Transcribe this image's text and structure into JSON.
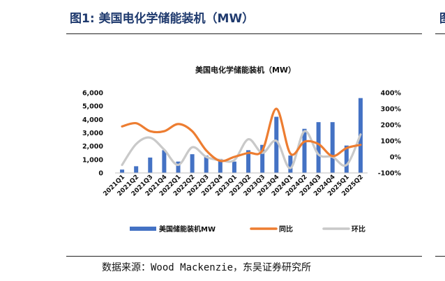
{
  "figure": {
    "title": "图1:  美国电化学储能装机（MW）",
    "clipped_title_fragment": "图",
    "source": "数据来源：Wood Mackenzie，东吴证券研究所"
  },
  "chart_data": {
    "type": "bar",
    "title": "美国电化学储能装机（MW）",
    "categories": [
      "2021Q1",
      "2021Q2",
      "2021Q3",
      "2021Q4",
      "2022Q1",
      "2022Q2",
      "2022Q3",
      "2022Q4",
      "2023Q1",
      "2023Q2",
      "2023Q3",
      "2023Q4",
      "2024Q1",
      "2024Q2",
      "2024Q3",
      "2024Q4",
      "2025Q1",
      "2025Q2"
    ],
    "y_left": {
      "ticks": [
        "0",
        "1,000",
        "2,000",
        "3,000",
        "4,000",
        "5,000",
        "6,000"
      ],
      "lim": [
        0,
        6000
      ]
    },
    "y_right": {
      "ticks": [
        "-100%",
        "0%",
        "100%",
        "200%",
        "300%",
        "400%"
      ],
      "lim": [
        -100,
        400
      ]
    },
    "grid": false,
    "legend_position": "bottom",
    "series": [
      {
        "name": "美国储能装机MW",
        "kind": "bar",
        "axis": "left",
        "color": "#4472c4",
        "values": [
          250,
          500,
          1150,
          1700,
          850,
          1400,
          1300,
          1050,
          850,
          1700,
          2100,
          4200,
          1300,
          3300,
          3800,
          3800,
          2050,
          5600
        ]
      },
      {
        "name": "同比",
        "kind": "line",
        "axis": "right",
        "color": "#ed7d31",
        "values": [
          190,
          210,
          160,
          160,
          205,
          160,
          40,
          -25,
          0,
          25,
          40,
          300,
          20,
          95,
          80,
          5,
          55,
          75
        ]
      },
      {
        "name": "环比",
        "kind": "line",
        "axis": "right",
        "color": "#c9c9c9",
        "values": [
          -50,
          80,
          120,
          45,
          -50,
          60,
          0,
          -20,
          -20,
          110,
          25,
          100,
          -70,
          160,
          15,
          0,
          -50,
          140
        ]
      }
    ]
  }
}
